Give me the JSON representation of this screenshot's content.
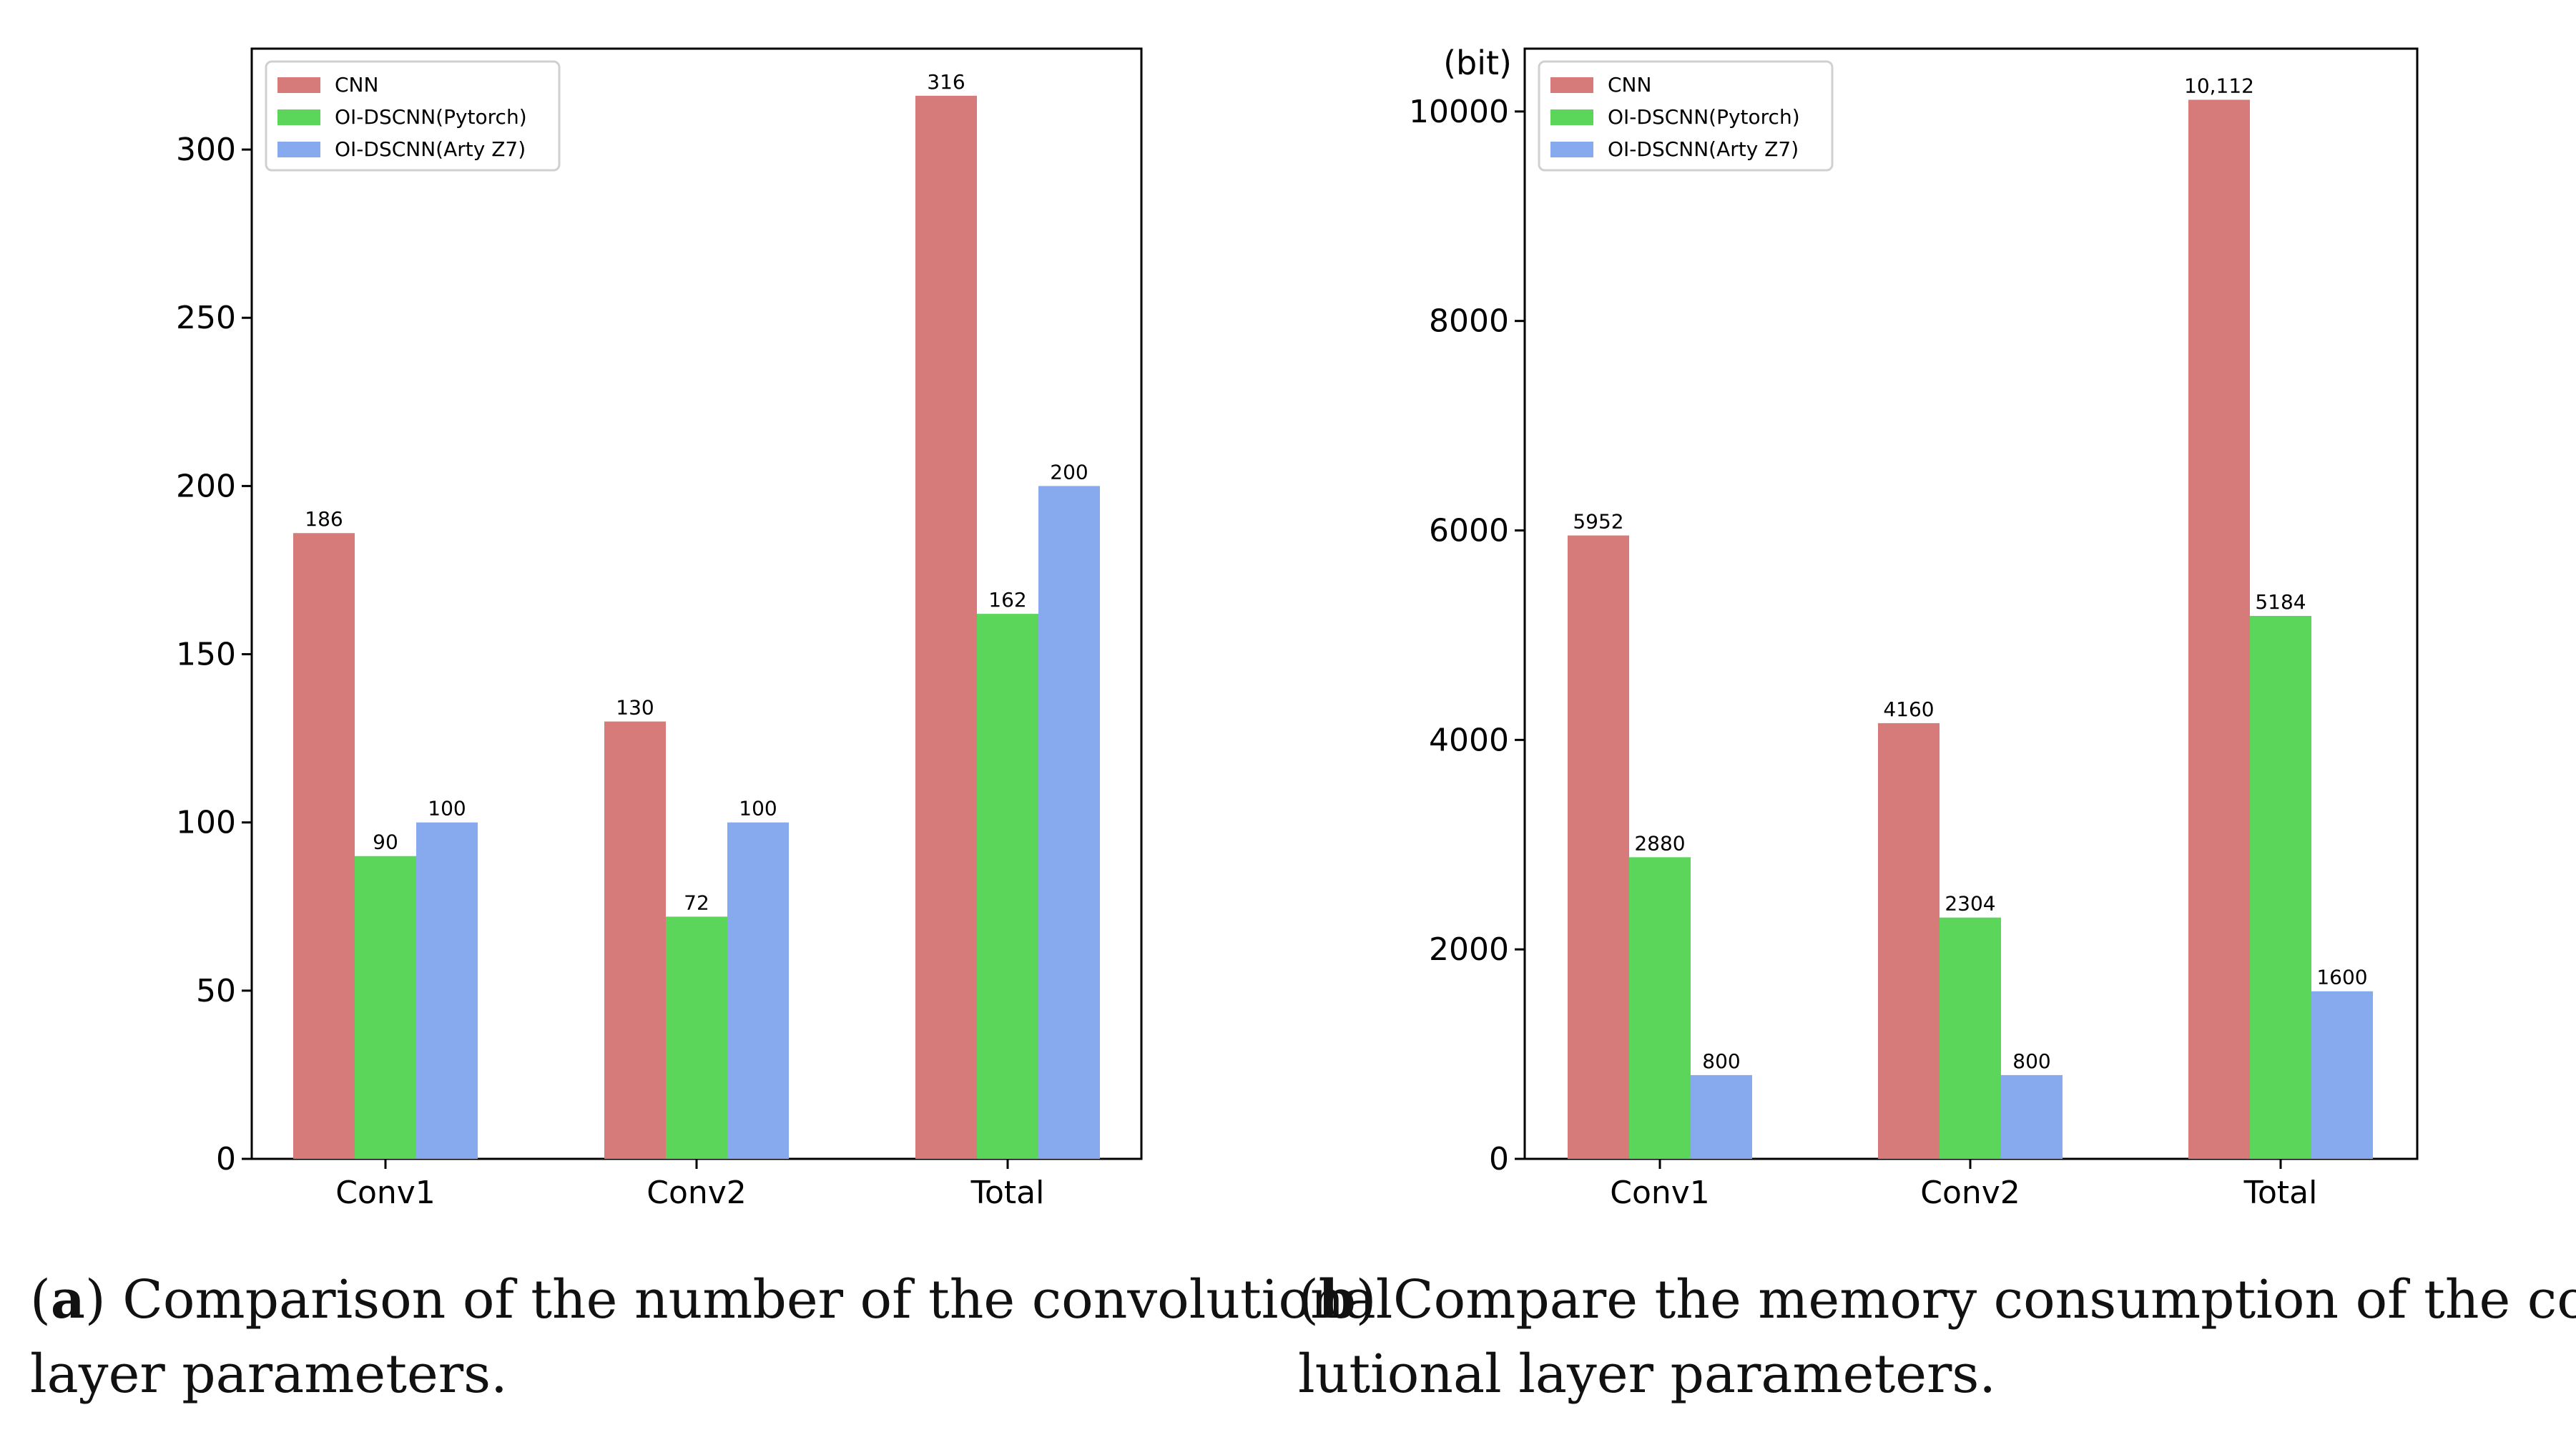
{
  "chart_data": [
    {
      "type": "bar",
      "panel": "a",
      "categories": [
        "Conv1",
        "Conv2",
        "Total"
      ],
      "series": [
        {
          "name": "CNN",
          "values": [
            186,
            130,
            316
          ],
          "labels": [
            "186",
            "130",
            "316"
          ]
        },
        {
          "name": "OI-DSCNN(Pytorch)",
          "values": [
            90,
            72,
            162
          ],
          "labels": [
            "90",
            "72",
            "162"
          ]
        },
        {
          "name": "OI-DSCNN(Arty Z7)",
          "values": [
            100,
            100,
            200
          ],
          "labels": [
            "100",
            "100",
            "200"
          ]
        }
      ],
      "colors": [
        "#d67b79",
        "#5bd65b",
        "#87aaef"
      ],
      "yticks": [
        0,
        50,
        100,
        150,
        200,
        250,
        300
      ],
      "ylim": [
        0,
        330
      ],
      "ylabel": "",
      "xlabel": "",
      "legend": "top-left",
      "caption_label": "a",
      "caption_line1": "Comparison of the number of the convolutional",
      "caption_line2": "layer parameters."
    },
    {
      "type": "bar",
      "panel": "b",
      "categories": [
        "Conv1",
        "Conv2",
        "Total"
      ],
      "series": [
        {
          "name": "CNN",
          "values": [
            5952,
            4160,
            10112
          ],
          "labels": [
            "5952",
            "4160",
            "10,112"
          ]
        },
        {
          "name": "OI-DSCNN(Pytorch)",
          "values": [
            2880,
            2304,
            5184
          ],
          "labels": [
            "2880",
            "2304",
            "5184"
          ]
        },
        {
          "name": "OI-DSCNN(Arty Z7)",
          "values": [
            800,
            800,
            1600
          ],
          "labels": [
            "800",
            "800",
            "1600"
          ]
        }
      ],
      "colors": [
        "#d67b79",
        "#5bd65b",
        "#87aaef"
      ],
      "yticks": [
        0,
        2000,
        4000,
        6000,
        8000,
        10000
      ],
      "ylim": [
        0,
        10600
      ],
      "ylabel": "(bit)",
      "xlabel": "",
      "legend": "top-left",
      "caption_label": "b",
      "caption_line1": "Compare the memory consumption of the convo-",
      "caption_line2": "lutional layer parameters."
    }
  ]
}
